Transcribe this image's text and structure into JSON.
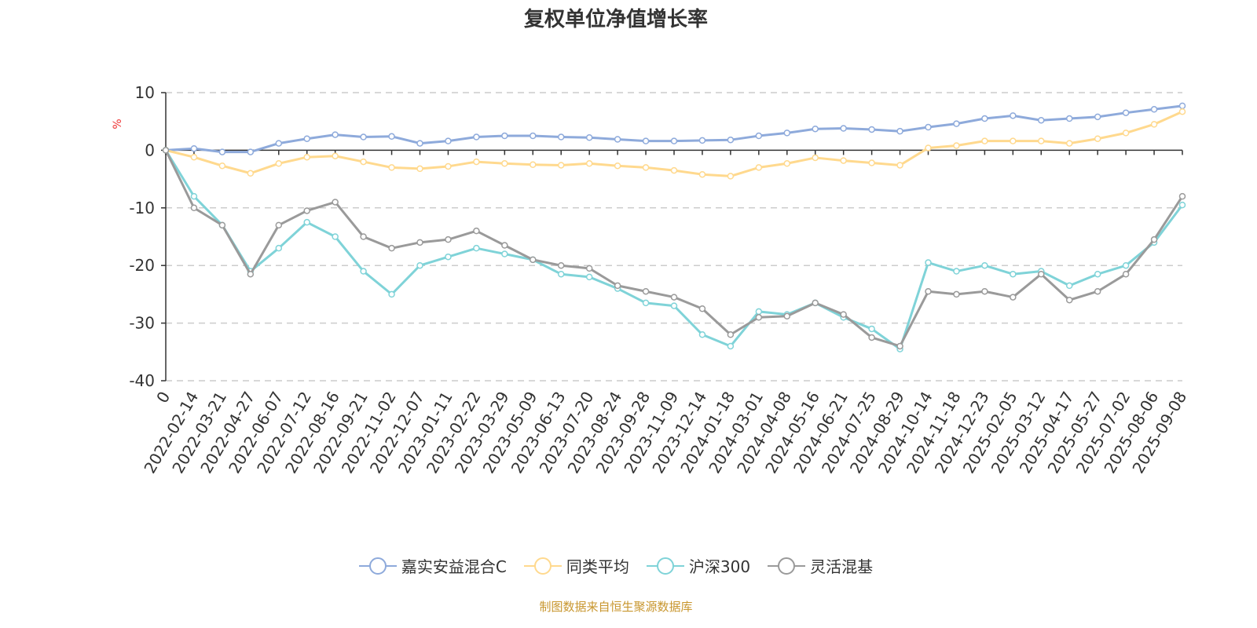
{
  "chart_data": {
    "type": "line",
    "title": "复权单位净值增长率",
    "ylabel": "%",
    "xlabel": "",
    "ylim": [
      -40,
      10
    ],
    "yticks": [
      10,
      0,
      -10,
      -20,
      -30,
      -40
    ],
    "grid": true,
    "legend_position": "bottom",
    "categories": [
      "0",
      "2022-02-14",
      "2022-03-21",
      "2022-04-27",
      "2022-06-07",
      "2022-07-12",
      "2022-08-16",
      "2022-09-21",
      "2022-11-02",
      "2022-12-07",
      "2023-01-11",
      "2023-02-22",
      "2023-03-29",
      "2023-05-09",
      "2023-06-13",
      "2023-07-20",
      "2023-08-24",
      "2023-09-28",
      "2023-11-09",
      "2023-12-14",
      "2024-01-18",
      "2024-03-01",
      "2024-04-08",
      "2024-05-16",
      "2024-06-21",
      "2024-07-25",
      "2024-08-29",
      "2024-10-14",
      "2024-11-18",
      "2024-12-23",
      "2025-02-05",
      "2025-03-12",
      "2025-04-17",
      "2025-05-27",
      "2025-07-02",
      "2025-08-06",
      "2025-09-08"
    ],
    "series": [
      {
        "name": "嘉实安益混合C",
        "color": "#8eaadb",
        "values": [
          0,
          0.3,
          -0.3,
          -0.3,
          1.2,
          2,
          2.7,
          2.3,
          2.4,
          1.2,
          1.6,
          2.3,
          2.5,
          2.5,
          2.3,
          2.2,
          1.9,
          1.6,
          1.6,
          1.7,
          1.8,
          2.5,
          3,
          3.7,
          3.8,
          3.6,
          3.3,
          4,
          4.6,
          5.5,
          6,
          5.2,
          5.5,
          5.8,
          6.5,
          7.1,
          7.7
        ]
      },
      {
        "name": "同类平均",
        "color": "#ffd98e",
        "values": [
          0,
          -1.2,
          -2.7,
          -4,
          -2.3,
          -1.2,
          -1,
          -2,
          -3,
          -3.2,
          -2.8,
          -2,
          -2.3,
          -2.5,
          -2.6,
          -2.3,
          -2.7,
          -3,
          -3.5,
          -4.2,
          -4.5,
          -3,
          -2.3,
          -1.3,
          -1.8,
          -2.2,
          -2.6,
          0.4,
          0.8,
          1.6,
          1.6,
          1.6,
          1.2,
          2,
          3,
          4.5,
          6.7
        ]
      },
      {
        "name": "沪深300",
        "color": "#7fd3d8",
        "values": [
          0,
          -8,
          -13,
          -21,
          -17,
          -12.5,
          -15,
          -21,
          -25,
          -20,
          -18.5,
          -17,
          -18,
          -19,
          -21.5,
          -22,
          -24,
          -26.5,
          -27,
          -32,
          -34,
          -28,
          -28.5,
          -26.5,
          -29,
          -31,
          -34.5,
          -19.5,
          -21,
          -20,
          -21.5,
          -21,
          -23.5,
          -21.5,
          -20,
          -16,
          -9.5
        ]
      },
      {
        "name": "灵活混基",
        "color": "#9a9a9a",
        "values": [
          0,
          -10,
          -13,
          -21.5,
          -13,
          -10.5,
          -9,
          -15,
          -17,
          -16,
          -15.5,
          -14,
          -16.5,
          -19,
          -20,
          -20.5,
          -23.5,
          -24.5,
          -25.5,
          -27.5,
          -32,
          -29,
          -28.8,
          -26.5,
          -28.5,
          -32.5,
          -34,
          -24.5,
          -25,
          -24.5,
          -25.5,
          -21.5,
          -26,
          -24.5,
          -21.5,
          -15.5,
          -8
        ]
      }
    ]
  },
  "source": "制图数据来自恒生聚源数据库"
}
